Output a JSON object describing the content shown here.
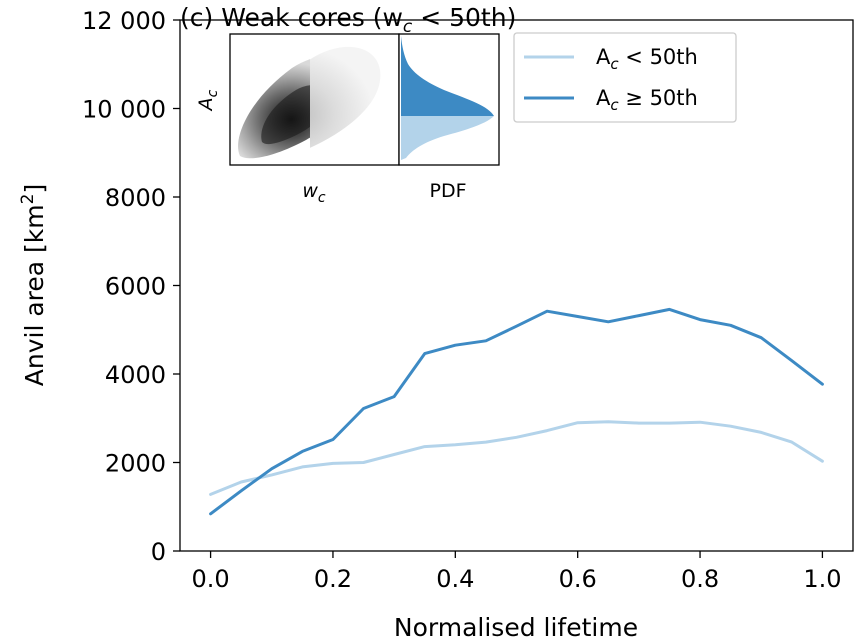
{
  "chart_data": {
    "type": "line",
    "title": "(c) Weak cores (w",
    "title_sub": "c",
    "title_tail": " < 50th)",
    "xlabel": "Normalised lifetime",
    "ylabel": "Anvil area [km",
    "ylabel_sup": "2",
    "ylabel_tail": "]",
    "xlim": [
      -0.05,
      1.05
    ],
    "ylim": [
      0,
      12000
    ],
    "xticks": [
      0.0,
      0.2,
      0.4,
      0.6,
      0.8,
      1.0
    ],
    "xtick_labels": [
      "0.0",
      "0.2",
      "0.4",
      "0.6",
      "0.8",
      "1.0"
    ],
    "yticks": [
      0,
      2000,
      4000,
      6000,
      8000,
      10000,
      12000
    ],
    "ytick_labels": [
      "0",
      "2000",
      "4000",
      "6000",
      "8000",
      "10 000",
      "12 000"
    ],
    "grid": false,
    "legend_position": "top-right",
    "x": [
      0.0,
      0.05,
      0.1,
      0.15,
      0.2,
      0.25,
      0.3,
      0.35,
      0.4,
      0.45,
      0.5,
      0.55,
      0.6,
      0.65,
      0.7,
      0.75,
      0.8,
      0.85,
      0.9,
      0.95,
      1.0
    ],
    "series": [
      {
        "name": "A",
        "name_sub": "c",
        "name_tail": " < 50th",
        "color": "#b3d3ea",
        "values": [
          1280,
          1560,
          1720,
          1900,
          1980,
          2000,
          2180,
          2360,
          2400,
          2460,
          2570,
          2720,
          2900,
          2920,
          2890,
          2890,
          2910,
          2820,
          2680,
          2460,
          2030
        ]
      },
      {
        "name": "A",
        "name_sub": "c",
        "name_tail": " ≥ 50th",
        "color": "#3d8ac4",
        "values": [
          840,
          1360,
          1860,
          2250,
          2520,
          3220,
          3490,
          4460,
          4650,
          4750,
          5080,
          5420,
          5300,
          5180,
          5320,
          5460,
          5230,
          5100,
          4820,
          4300,
          3770
        ]
      }
    ],
    "inset": {
      "ylabel": "A",
      "ylabel_sub": "c",
      "xlabel_left": "w",
      "xlabel_left_sub": "c",
      "xlabel_right": "PDF"
    }
  }
}
